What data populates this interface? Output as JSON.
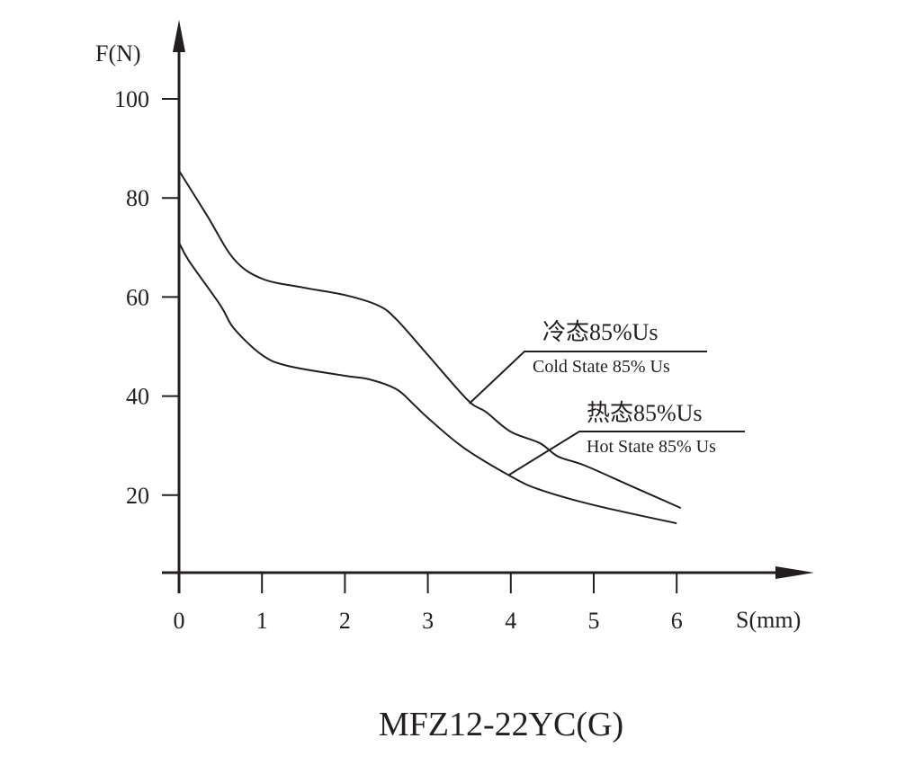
{
  "chart_data": {
    "type": "line",
    "title": "MFZ12-22YC(G)",
    "xlabel": "S(mm)",
    "ylabel": "F(N)",
    "xlim": [
      0,
      6.5
    ],
    "ylim": [
      0,
      100
    ],
    "x_ticks": [
      "0",
      "1",
      "2",
      "3",
      "4",
      "5",
      "6"
    ],
    "y_ticks": [
      "20",
      "40",
      "60",
      "80",
      "100"
    ],
    "grid": false,
    "series": [
      {
        "name": "Cold State 85% Us",
        "name_cn": "冷态85%Us",
        "label_anchor": [
          3.5,
          38.5
        ],
        "x": [
          0,
          0.34,
          0.66,
          1,
          1.5,
          2,
          2.4,
          2.62,
          3,
          3.48,
          3.7,
          4,
          4.35,
          4.57,
          4.89,
          5.43,
          6.05
        ],
        "y": [
          85.5,
          76.4,
          67.7,
          63.7,
          61.9,
          60.4,
          58.3,
          55.5,
          48.3,
          39.2,
          36.8,
          32.8,
          30.5,
          27.8,
          26,
          22,
          17.4
        ]
      },
      {
        "name": "Hot State 85% Us",
        "name_cn": "热态85%Us",
        "label_anchor": [
          3.97,
          24
        ],
        "x": [
          0,
          0.12,
          0.5,
          0.66,
          1,
          1.31,
          2,
          2.29,
          2.62,
          2.83,
          3,
          3.43,
          4,
          4.35,
          5,
          6
        ],
        "y": [
          71,
          67.3,
          58.3,
          53.7,
          48.3,
          46.1,
          44.1,
          43.4,
          41.4,
          38.3,
          35.6,
          29.6,
          23.8,
          21.1,
          18,
          14.3
        ]
      }
    ]
  },
  "colors": {
    "ink": "#231f20"
  }
}
